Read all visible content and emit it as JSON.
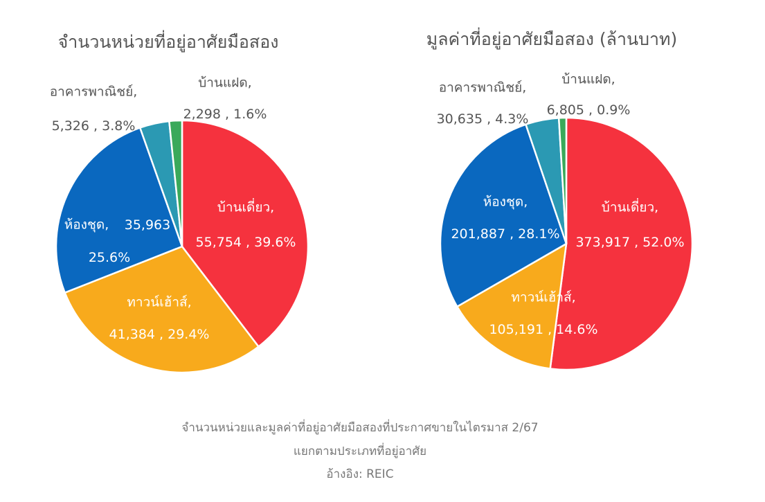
{
  "chart_data": [
    {
      "type": "pie",
      "title": "จำนวนหน่วยที่อยู่อาศัยมือสอง",
      "categories": [
        "บ้านเดี่ยว,",
        "ทาวน์เฮ้าส์,",
        "ห้องชุด,",
        "อาคารพาณิชย์,",
        "บ้านแฝด,"
      ],
      "values": [
        55754,
        41384,
        35963,
        5326,
        2298
      ],
      "value_labels": [
        "55,754 , 39.6%",
        "41,384 , 29.4%",
        "35,963\n25.6%",
        "5,326 , 3.8%",
        "2,298 , 1.6%"
      ],
      "colors": [
        "#f5323e",
        "#f8aa1c",
        "#0a68bf",
        "#2b99b3",
        "#3aa95a"
      ]
    },
    {
      "type": "pie",
      "title": "มูลค่าที่อยู่อาศัยมือสอง (ล้านบาท)",
      "categories": [
        "บ้านเดี่ยว,",
        "ทาวน์เฮ้าส์,",
        "ห้องชุด,",
        "อาคารพาณิชย์,",
        "บ้านแฝด,"
      ],
      "values": [
        373917,
        105191,
        201887,
        30635,
        6805
      ],
      "value_labels": [
        "373,917 , 52.0%",
        "105,191 , 14.6%",
        "201,887 , 28.1%",
        "30,635 , 4.3%",
        "6,805 , 0.9%"
      ],
      "colors": [
        "#f5323e",
        "#f8aa1c",
        "#0a68bf",
        "#2b99b3",
        "#3aa95a"
      ]
    }
  ],
  "caption": [
    "จำนวนหน่วยและมูลค่าที่อยู่อาศัยมือสองที่ประกาศขายในไตรมาส 2/67",
    "แยกตามประเภทที่อยู่อาศัย",
    "อ้างอิง: REIC"
  ]
}
